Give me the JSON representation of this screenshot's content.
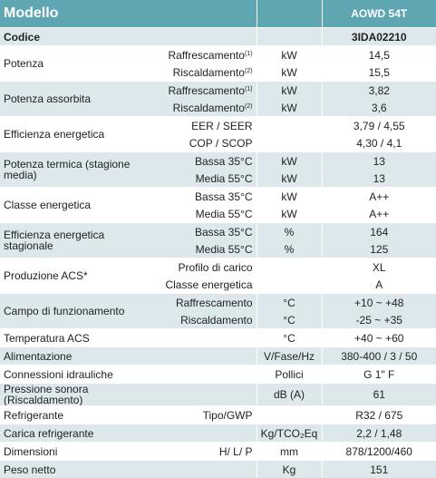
{
  "header": {
    "title": "Modello",
    "model": "AOWD 54T"
  },
  "rows": [
    {
      "label": "Codice",
      "lines": [
        {
          "value": "3IDA02210"
        }
      ]
    },
    {
      "label": "Potenza",
      "lines": [
        {
          "sub": "Raffrescamento",
          "note": "(1)",
          "unit": "kW",
          "value": "14,5"
        },
        {
          "sub": "Riscaldamento",
          "note": "(2)",
          "unit": "kW",
          "value": "15,5"
        }
      ]
    },
    {
      "label": "Potenza assorbita",
      "lines": [
        {
          "sub": "Raffrescamento",
          "note": "(1)",
          "unit": "kW",
          "value": "3,82"
        },
        {
          "sub": "Riscaldamento",
          "note": "(2)",
          "unit": "kW",
          "value": "3,6"
        }
      ]
    },
    {
      "label": "Efficienza energetica",
      "lines": [
        {
          "sub": "EER / SEER",
          "value": "3,79 / 4,55"
        },
        {
          "sub": "COP / SCOP",
          "value": "4,30 / 4,1"
        }
      ]
    },
    {
      "label": "Potenza termica (stagione media)",
      "lines": [
        {
          "sub": "Bassa 35°C",
          "unit": "kW",
          "value": "13"
        },
        {
          "sub": "Media 55°C",
          "unit": "kW",
          "value": "13"
        }
      ]
    },
    {
      "label": "Classe energetica",
      "lines": [
        {
          "sub": "Bassa 35°C",
          "unit": "kW",
          "value": "A++"
        },
        {
          "sub": "Media 55°C",
          "unit": "kW",
          "value": "A++"
        }
      ]
    },
    {
      "label": "Efficienza energetica stagionale",
      "lines": [
        {
          "sub": "Bassa 35°C",
          "unit": "%",
          "value": "164"
        },
        {
          "sub": "Media 55°C",
          "unit": "%",
          "value": "125"
        }
      ]
    },
    {
      "label": "Produzione ACS*",
      "lines": [
        {
          "sub": "Profilo di carico",
          "value": "XL"
        },
        {
          "sub": "Classe energetica",
          "value": "A"
        }
      ]
    },
    {
      "label": "Campo di funzionamento",
      "lines": [
        {
          "sub": "Raffrescamento",
          "unit": "°C",
          "value": "+10 ~ +48"
        },
        {
          "sub": "Riscaldamento",
          "unit": "°C",
          "value": "-25 ~ +35"
        }
      ]
    },
    {
      "label": "Temperatura ACS",
      "lines": [
        {
          "unit": "°C",
          "value": "+40 ~ +60"
        }
      ]
    },
    {
      "label": "Alimentazione",
      "lines": [
        {
          "unit": "V/Fase/Hz",
          "value": "380-400 / 3 / 50"
        }
      ]
    },
    {
      "label": "Connessioni idrauliche",
      "lines": [
        {
          "unit": "Pollici",
          "value": "G 1\" F"
        }
      ]
    },
    {
      "label": "Pressione sonora (Riscaldamento)",
      "lines": [
        {
          "unit": "dB (A)",
          "value": "61"
        }
      ]
    },
    {
      "label": "Refrigerante",
      "lines": [
        {
          "sub": "Tipo/GWP",
          "value": "R32 / 675"
        }
      ]
    },
    {
      "label": "Carica refrigerante",
      "lines": [
        {
          "unit": "Kg/TCO₂Eq",
          "value": "2,2 / 1,48"
        }
      ]
    },
    {
      "label": "Dimensioni",
      "lines": [
        {
          "sub": "H/ L/ P",
          "unit": "mm",
          "value": "878/1200/460"
        }
      ]
    },
    {
      "label": "Peso netto",
      "lines": [
        {
          "unit": "Kg",
          "value": "151"
        }
      ]
    }
  ]
}
